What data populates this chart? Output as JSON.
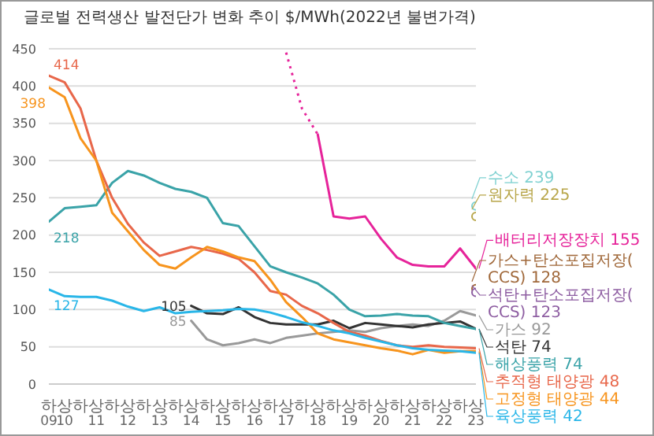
{
  "chart_data": {
    "type": "line",
    "title": "글로벌 전력생산 발전단가 변화 추이 $/MWh(2022년 불변가격)",
    "categories": [
      "하",
      "상",
      "하",
      "상",
      "하",
      "상",
      "하",
      "상",
      "하",
      "상",
      "하",
      "상",
      "하",
      "상",
      "하",
      "상",
      "하",
      "상",
      "하",
      "상",
      "하",
      "상",
      "하",
      "상",
      "하",
      "상",
      "하",
      "상"
    ],
    "annotations": [
      "09",
      "10",
      "11",
      "12",
      "13",
      "14",
      "15",
      "16",
      "17",
      "18",
      "19",
      "20",
      "21",
      "22",
      "23"
    ],
    "ylim": [
      0,
      450
    ],
    "yticks": [
      0,
      50,
      100,
      150,
      200,
      250,
      300,
      350,
      400,
      450
    ],
    "grid": "y",
    "series": [
      {
        "name": "수소",
        "type": "scatter",
        "color": "#7fd1d1",
        "values": [
          null,
          null,
          null,
          null,
          null,
          null,
          null,
          null,
          null,
          null,
          null,
          null,
          null,
          null,
          null,
          null,
          null,
          null,
          null,
          null,
          null,
          null,
          null,
          null,
          null,
          null,
          null,
          239
        ],
        "value_labels": [
          null,
          null,
          null,
          null,
          null,
          null,
          null,
          null,
          null,
          null,
          null,
          null,
          null,
          null,
          null,
          null,
          null,
          null,
          null,
          null,
          null,
          null,
          null,
          null,
          null,
          null,
          null,
          "239"
        ]
      },
      {
        "name": "원자력",
        "type": "scatter",
        "color": "#b8a64a",
        "values": [
          null,
          null,
          null,
          null,
          null,
          null,
          null,
          null,
          null,
          null,
          null,
          null,
          null,
          null,
          null,
          null,
          null,
          null,
          null,
          null,
          null,
          null,
          null,
          null,
          null,
          null,
          null,
          225
        ],
        "value_labels": [
          null,
          null,
          null,
          null,
          null,
          null,
          null,
          null,
          null,
          null,
          null,
          null,
          null,
          null,
          null,
          null,
          null,
          null,
          null,
          null,
          null,
          null,
          null,
          null,
          null,
          null,
          null,
          "225"
        ]
      },
      {
        "color": "#e6239a",
        "line_style": "dotted",
        "values": [
          null,
          null,
          null,
          null,
          null,
          null,
          null,
          null,
          null,
          null,
          null,
          null,
          null,
          null,
          null,
          445,
          370,
          335,
          null,
          null,
          null,
          null,
          null,
          null,
          null,
          null,
          null,
          null
        ]
      },
      {
        "name": "배터리저장장치",
        "color": "#e6239a",
        "values": [
          null,
          null,
          null,
          null,
          null,
          null,
          null,
          null,
          null,
          null,
          null,
          null,
          null,
          null,
          null,
          null,
          null,
          335,
          225,
          222,
          225,
          195,
          170,
          160,
          158,
          158,
          182,
          155
        ],
        "value_labels": [
          null,
          null,
          null,
          null,
          null,
          null,
          null,
          null,
          null,
          null,
          null,
          null,
          null,
          null,
          null,
          null,
          null,
          null,
          null,
          null,
          null,
          null,
          null,
          null,
          null,
          null,
          null,
          "155"
        ]
      },
      {
        "name": "가스+탄소포집저장(CCS)",
        "type": "scatter",
        "color": "#a0683a",
        "values": [
          null,
          null,
          null,
          null,
          null,
          null,
          null,
          null,
          null,
          null,
          null,
          null,
          null,
          null,
          null,
          null,
          null,
          null,
          null,
          null,
          null,
          null,
          null,
          null,
          null,
          null,
          null,
          128
        ],
        "value_labels": [
          null,
          null,
          null,
          null,
          null,
          null,
          null,
          null,
          null,
          null,
          null,
          null,
          null,
          null,
          null,
          null,
          null,
          null,
          null,
          null,
          null,
          null,
          null,
          null,
          null,
          null,
          null,
          "128"
        ]
      },
      {
        "name": "석탄+탄소포집저장(CCS)",
        "type": "scatter",
        "color": "#8e5ea2",
        "values": [
          null,
          null,
          null,
          null,
          null,
          null,
          null,
          null,
          null,
          null,
          null,
          null,
          null,
          null,
          null,
          null,
          null,
          null,
          null,
          null,
          null,
          null,
          null,
          null,
          null,
          null,
          null,
          123
        ],
        "value_labels": [
          null,
          null,
          null,
          null,
          null,
          null,
          null,
          null,
          null,
          null,
          null,
          null,
          null,
          null,
          null,
          null,
          null,
          null,
          null,
          null,
          null,
          null,
          null,
          null,
          null,
          null,
          null,
          "123"
        ]
      },
      {
        "name": "가스",
        "color": "#999999",
        "values": [
          null,
          null,
          null,
          null,
          null,
          null,
          null,
          null,
          null,
          85,
          60,
          52,
          55,
          60,
          55,
          62,
          65,
          68,
          70,
          72,
          70,
          75,
          78,
          80,
          78,
          85,
          98,
          92
        ],
        "value_labels": [
          null,
          null,
          null,
          null,
          null,
          null,
          null,
          null,
          null,
          "85",
          null,
          null,
          null,
          null,
          null,
          null,
          null,
          null,
          null,
          null,
          null,
          null,
          null,
          null,
          null,
          null,
          null,
          "92"
        ]
      },
      {
        "name": "석탄",
        "color": "#333333",
        "values": [
          null,
          null,
          null,
          null,
          null,
          null,
          null,
          null,
          null,
          105,
          95,
          94,
          103,
          90,
          82,
          80,
          80,
          80,
          85,
          75,
          82,
          80,
          78,
          76,
          80,
          82,
          84,
          74
        ],
        "value_labels": [
          null,
          null,
          null,
          null,
          null,
          null,
          null,
          null,
          null,
          "105",
          null,
          null,
          null,
          null,
          null,
          null,
          null,
          null,
          null,
          null,
          null,
          null,
          null,
          null,
          null,
          null,
          null,
          "74"
        ]
      },
      {
        "name": "해상풍력",
        "color": "#3aa3a8",
        "values": [
          218,
          236,
          238,
          240,
          270,
          286,
          280,
          270,
          262,
          258,
          250,
          216,
          212,
          185,
          158,
          150,
          143,
          135,
          120,
          100,
          91,
          92,
          94,
          92,
          91,
          82,
          78,
          74
        ],
        "value_labels": [
          "218",
          null,
          null,
          null,
          null,
          null,
          null,
          null,
          null,
          null,
          null,
          null,
          null,
          null,
          null,
          null,
          null,
          null,
          null,
          null,
          null,
          null,
          null,
          null,
          null,
          null,
          null,
          "74"
        ]
      },
      {
        "name": "추적형 태양광",
        "color": "#e8674a",
        "values": [
          414,
          405,
          370,
          300,
          250,
          215,
          190,
          172,
          178,
          184,
          180,
          175,
          168,
          150,
          125,
          120,
          105,
          95,
          82,
          70,
          65,
          58,
          52,
          50,
          52,
          50,
          49,
          48
        ],
        "value_labels": [
          "414",
          null,
          null,
          null,
          null,
          null,
          null,
          null,
          null,
          null,
          null,
          null,
          null,
          null,
          null,
          null,
          null,
          null,
          null,
          null,
          null,
          null,
          null,
          null,
          null,
          null,
          null,
          "48"
        ]
      },
      {
        "name": "고정형 태양광",
        "color": "#f7941d",
        "values": [
          398,
          385,
          330,
          300,
          230,
          205,
          180,
          160,
          155,
          170,
          184,
          178,
          170,
          165,
          140,
          110,
          90,
          68,
          60,
          56,
          52,
          48,
          45,
          40,
          46,
          42,
          44,
          44
        ],
        "value_labels": [
          "398",
          null,
          null,
          null,
          null,
          null,
          null,
          null,
          null,
          null,
          null,
          null,
          null,
          null,
          null,
          null,
          null,
          null,
          null,
          null,
          null,
          null,
          null,
          null,
          null,
          null,
          null,
          "44"
        ]
      },
      {
        "name": "육상풍력",
        "color": "#29b6e8",
        "values": [
          127,
          118,
          117,
          117,
          112,
          104,
          98,
          103,
          95,
          97,
          98,
          99,
          101,
          100,
          96,
          90,
          83,
          78,
          72,
          68,
          62,
          57,
          52,
          48,
          46,
          45,
          44,
          42
        ],
        "value_labels": [
          "127",
          null,
          null,
          null,
          null,
          null,
          null,
          null,
          null,
          null,
          null,
          null,
          null,
          null,
          null,
          null,
          null,
          null,
          null,
          null,
          null,
          null,
          null,
          null,
          null,
          null,
          null,
          "42"
        ]
      }
    ]
  }
}
